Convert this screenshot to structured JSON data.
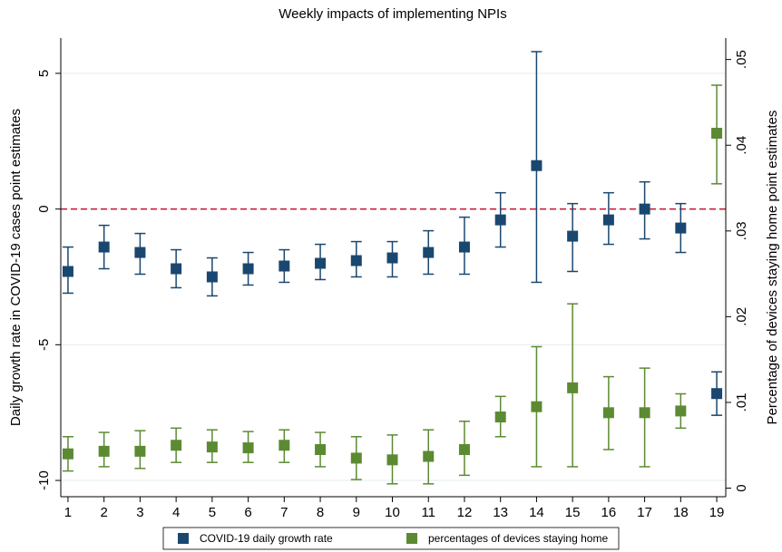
{
  "chart_data": {
    "type": "errorbar",
    "title": "Weekly impacts of implementing NPIs",
    "y_label": "Daily growth rate in COVID-19 cases point estimates",
    "y2_label": "Percentage of devices staying home point estimates",
    "x": [
      1,
      2,
      3,
      4,
      5,
      6,
      7,
      8,
      9,
      10,
      11,
      12,
      13,
      14,
      15,
      16,
      17,
      18,
      19
    ],
    "xlim": [
      0.8,
      19.25
    ],
    "xticks": [
      1,
      2,
      3,
      4,
      5,
      6,
      7,
      8,
      9,
      10,
      11,
      12,
      13,
      14,
      15,
      16,
      17,
      18,
      19
    ],
    "ylim": [
      -10.6,
      6.3
    ],
    "yticks": [
      5,
      0,
      -5,
      -10
    ],
    "y2lim": [
      -0.001,
      0.0525
    ],
    "y2ticks": [
      {
        "value": 0.05,
        "label": ".05"
      },
      {
        "value": 0.04,
        "label": ".04"
      },
      {
        "value": 0.03,
        "label": ".03"
      },
      {
        "value": 0.02,
        "label": ".02"
      },
      {
        "value": 0.01,
        "label": ".01"
      },
      0
    ],
    "grid": true,
    "yline": 0,
    "series": [
      {
        "name": "COVID-19 daily growth rate",
        "color": "#1a476f",
        "axis": "y",
        "values": [
          -2.3,
          -1.4,
          -1.6,
          -2.2,
          -2.5,
          -2.2,
          -2.1,
          -2.0,
          -1.9,
          -1.8,
          -1.6,
          -1.4,
          -0.4,
          1.6,
          -1.0,
          -0.4,
          0.0,
          -0.7,
          -6.8
        ],
        "ci_low": [
          -3.1,
          -2.2,
          -2.4,
          -2.9,
          -3.2,
          -2.8,
          -2.7,
          -2.6,
          -2.5,
          -2.5,
          -2.4,
          -2.4,
          -1.4,
          -2.7,
          -2.3,
          -1.3,
          -1.1,
          -1.6,
          -7.6
        ],
        "ci_high": [
          -1.4,
          -0.6,
          -0.9,
          -1.5,
          -1.8,
          -1.6,
          -1.5,
          -1.3,
          -1.2,
          -1.2,
          -0.8,
          -0.3,
          0.6,
          5.8,
          0.2,
          0.6,
          1.0,
          0.2,
          -6.0
        ]
      },
      {
        "name": "percentages of devices staying home",
        "color": "#5c8a32",
        "axis": "y2",
        "values": [
          0.004,
          0.0043,
          0.0043,
          0.005,
          0.0048,
          0.0047,
          0.005,
          0.0045,
          0.0035,
          0.0033,
          0.0037,
          0.0045,
          0.0083,
          0.0095,
          0.0117,
          0.0088,
          0.0088,
          0.009,
          0.0414
        ],
        "ci_low": [
          0.002,
          0.0025,
          0.0023,
          0.003,
          0.003,
          0.003,
          0.003,
          0.0025,
          0.001,
          0.0005,
          0.0005,
          0.0015,
          0.006,
          0.0025,
          0.0025,
          0.0045,
          0.0025,
          0.007,
          0.0355
        ],
        "ci_high": [
          0.006,
          0.0065,
          0.0067,
          0.007,
          0.0068,
          0.0066,
          0.0068,
          0.0065,
          0.006,
          0.0062,
          0.0068,
          0.0078,
          0.0107,
          0.0165,
          0.0215,
          0.013,
          0.014,
          0.011,
          0.047
        ]
      }
    ]
  }
}
